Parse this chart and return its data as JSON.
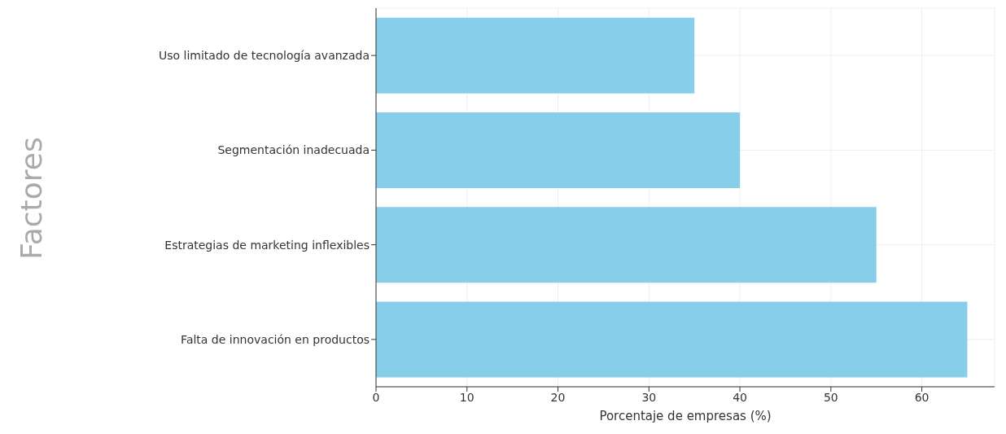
{
  "chart_data": {
    "type": "bar",
    "orientation": "horizontal",
    "ylabel": "Factores",
    "xlabel": "Porcentaje de empresas (%)",
    "categories": [
      "Uso limitado de tecnología avanzada",
      "Segmentación inadecuada",
      "Estrategias de marketing inflexibles",
      "Falta de innovación en productos"
    ],
    "values": [
      35,
      40,
      55,
      65
    ],
    "color": "#87ceeb",
    "xlim": [
      0,
      68
    ],
    "xticks": [
      0,
      10,
      20,
      30,
      40,
      50,
      60
    ],
    "grid": true
  }
}
